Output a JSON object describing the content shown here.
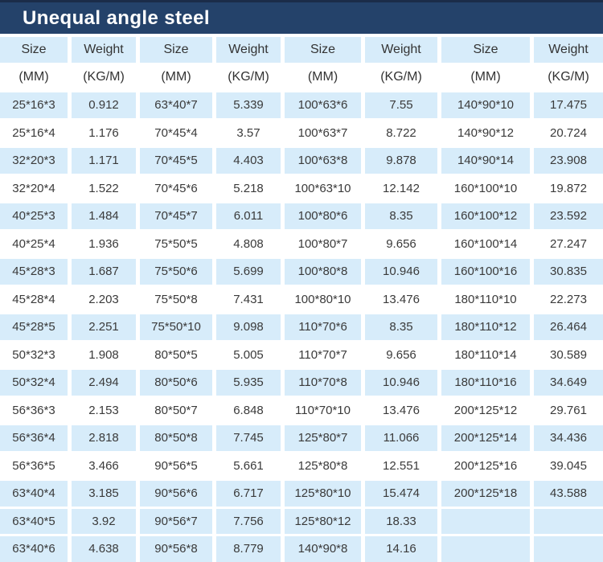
{
  "title": "Unequal angle steel",
  "chart_data": {
    "type": "table",
    "title": "Unequal angle steel",
    "column_headers": [
      "Size",
      "Weight",
      "Size",
      "Weight",
      "Size",
      "Weight",
      "Size",
      "Weight"
    ],
    "column_units": [
      "(MM)",
      "(KG/M)",
      "(MM)",
      "(KG/M)",
      "(MM)",
      "(KG/M)",
      "(MM)",
      "(KG/M)"
    ],
    "rows": [
      [
        "25*16*3",
        "0.912",
        "63*40*7",
        "5.339",
        "100*63*6",
        "7.55",
        "140*90*10",
        "17.475"
      ],
      [
        "25*16*4",
        "1.176",
        "70*45*4",
        "3.57",
        "100*63*7",
        "8.722",
        "140*90*12",
        "20.724"
      ],
      [
        "32*20*3",
        "1.171",
        "70*45*5",
        "4.403",
        "100*63*8",
        "9.878",
        "140*90*14",
        "23.908"
      ],
      [
        "32*20*4",
        "1.522",
        "70*45*6",
        "5.218",
        "100*63*10",
        "12.142",
        "160*100*10",
        "19.872"
      ],
      [
        "40*25*3",
        "1.484",
        "70*45*7",
        "6.011",
        "100*80*6",
        "8.35",
        "160*100*12",
        "23.592"
      ],
      [
        "40*25*4",
        "1.936",
        "75*50*5",
        "4.808",
        "100*80*7",
        "9.656",
        "160*100*14",
        "27.247"
      ],
      [
        "45*28*3",
        "1.687",
        "75*50*6",
        "5.699",
        "100*80*8",
        "10.946",
        "160*100*16",
        "30.835"
      ],
      [
        "45*28*4",
        "2.203",
        "75*50*8",
        "7.431",
        "100*80*10",
        "13.476",
        "180*110*10",
        "22.273"
      ],
      [
        "45*28*5",
        "2.251",
        "75*50*10",
        "9.098",
        "110*70*6",
        "8.35",
        "180*110*12",
        "26.464"
      ],
      [
        "50*32*3",
        "1.908",
        "80*50*5",
        "5.005",
        "110*70*7",
        "9.656",
        "180*110*14",
        "30.589"
      ],
      [
        "50*32*4",
        "2.494",
        "80*50*6",
        "5.935",
        "110*70*8",
        "10.946",
        "180*110*16",
        "34.649"
      ],
      [
        "56*36*3",
        "2.153",
        "80*50*7",
        "6.848",
        "110*70*10",
        "13.476",
        "200*125*12",
        "29.761"
      ],
      [
        "56*36*4",
        "2.818",
        "80*50*8",
        "7.745",
        "125*80*7",
        "11.066",
        "200*125*14",
        "34.436"
      ],
      [
        "56*36*5",
        "3.466",
        "90*56*5",
        "5.661",
        "125*80*8",
        "12.551",
        "200*125*16",
        "39.045"
      ],
      [
        "63*40*4",
        "3.185",
        "90*56*6",
        "6.717",
        "125*80*10",
        "15.474",
        "200*125*18",
        "43.588"
      ],
      [
        "63*40*5",
        "3.92",
        "90*56*7",
        "7.756",
        "125*80*12",
        "18.33",
        "",
        ""
      ],
      [
        "63*40*6",
        "4.638",
        "90*56*8",
        "8.779",
        "140*90*8",
        "14.16",
        "",
        ""
      ]
    ]
  },
  "colors": {
    "title_bar": "#24426a",
    "title_text": "#ffffff",
    "row_highlight": "#d7ecfa",
    "row_plain": "#ffffff",
    "cell_text": "#3a3a3a"
  }
}
